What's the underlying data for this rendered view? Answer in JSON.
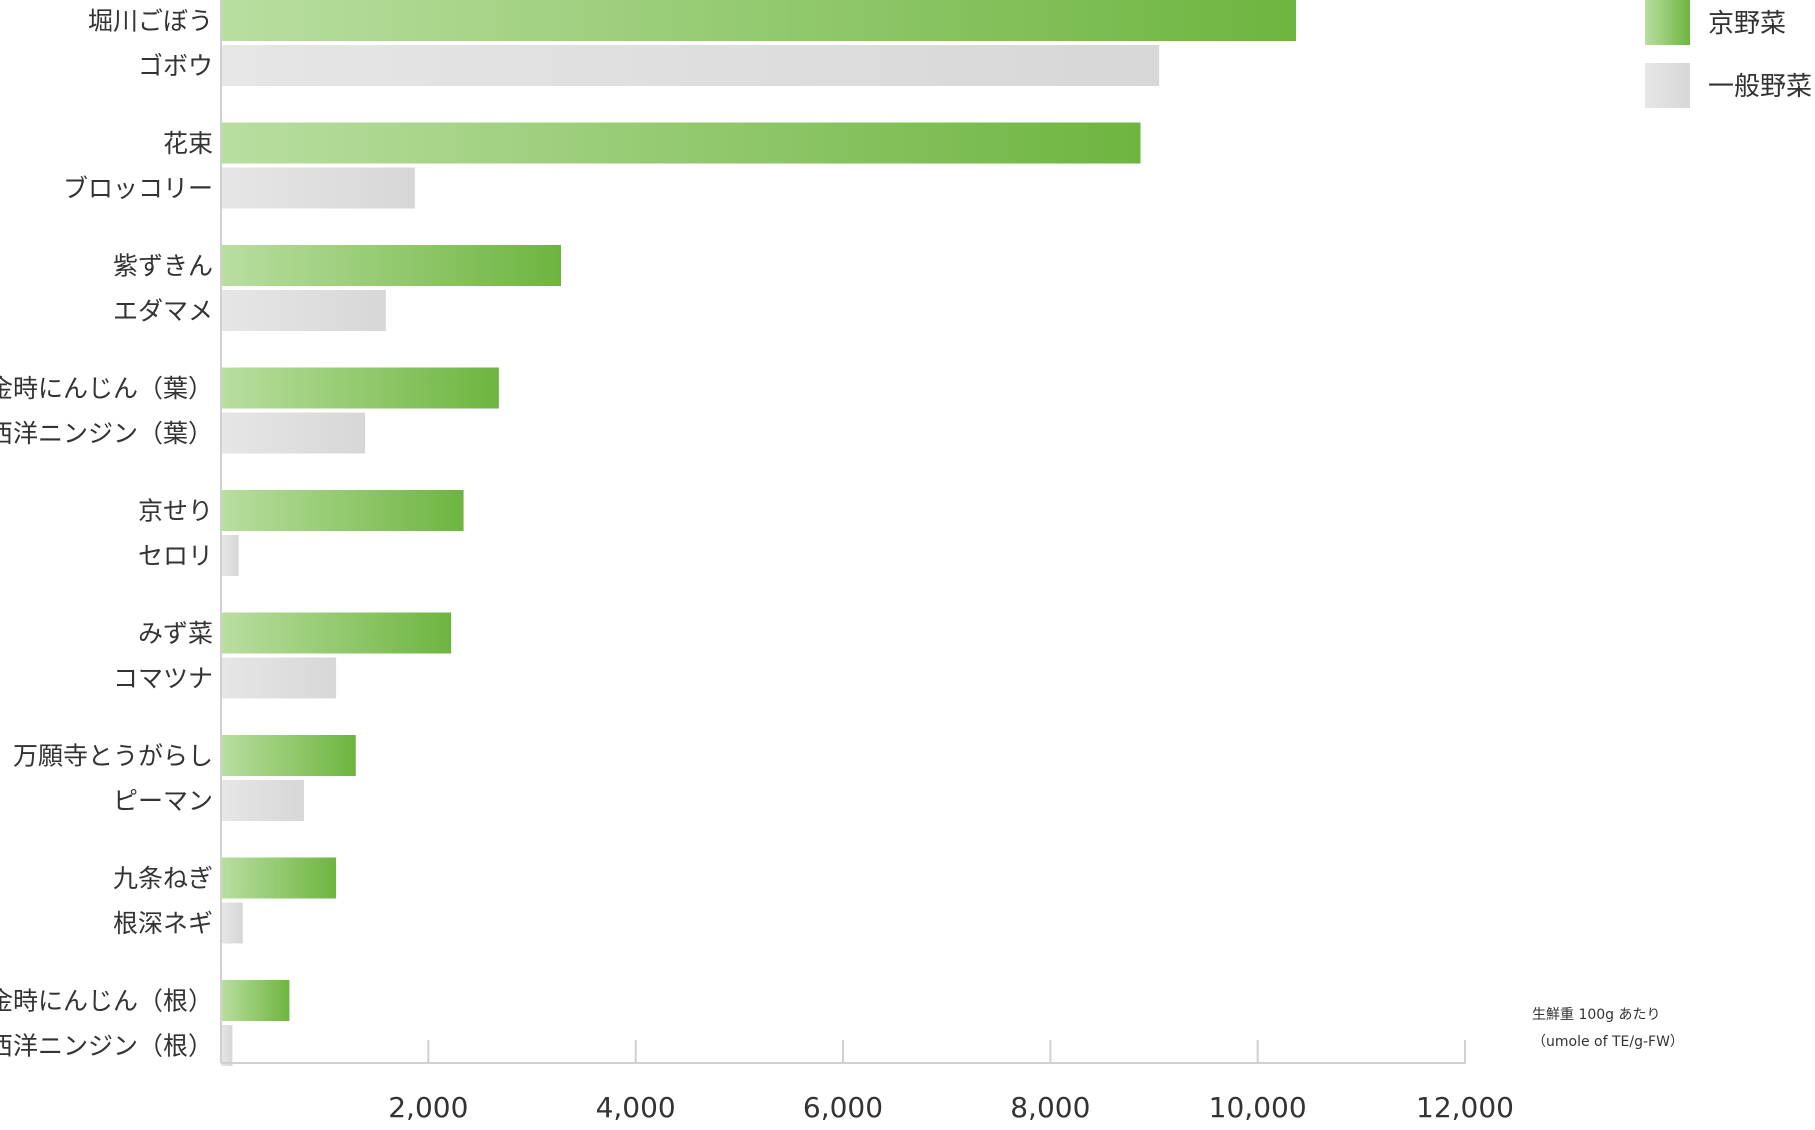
{
  "chart_data": {
    "type": "bar",
    "orientation": "horizontal",
    "xlim": [
      0,
      12000
    ],
    "xticks": [
      2000,
      4000,
      6000,
      8000,
      10000,
      12000
    ],
    "xtick_labels": [
      "2,000",
      "4,000",
      "6,000",
      "8,000",
      "10,000",
      "12,000"
    ],
    "grid": false,
    "legend_position": "top-right",
    "note_lines": [
      "生鮮重 100g あたり",
      "（umole of TE/g-FW）"
    ],
    "colors": {
      "kyo_start": "#b9dea0",
      "kyo_end": "#6eb540",
      "general_start": "#e6e6e6",
      "general_end": "#d7d7d7",
      "axis": "#d0d0d0",
      "text": "#333333"
    },
    "series": [
      {
        "name": "京野菜",
        "key": "kyo"
      },
      {
        "name": "一般野菜",
        "key": "general"
      }
    ],
    "groups": [
      {
        "kyo_label": "堀川ごぼう",
        "kyo_value": 10370,
        "general_label": "ゴボウ",
        "general_value": 9050
      },
      {
        "kyo_label": "花束",
        "kyo_value": 8870,
        "general_label": "ブロッコリー",
        "general_value": 1870
      },
      {
        "kyo_label": "紫ずきん",
        "kyo_value": 3280,
        "general_label": "エダマメ",
        "general_value": 1590
      },
      {
        "kyo_label": "金時にんじん（葉）",
        "kyo_value": 2680,
        "general_label": "西洋ニンジン（葉）",
        "general_value": 1390
      },
      {
        "kyo_label": "京せり",
        "kyo_value": 2340,
        "general_label": "セロリ",
        "general_value": 170
      },
      {
        "kyo_label": "みず菜",
        "kyo_value": 2220,
        "general_label": "コマツナ",
        "general_value": 1110
      },
      {
        "kyo_label": "万願寺とうがらし",
        "kyo_value": 1300,
        "general_label": "ピーマン",
        "general_value": 800
      },
      {
        "kyo_label": "九条ねぎ",
        "kyo_value": 1110,
        "general_label": "根深ネギ",
        "general_value": 210
      },
      {
        "kyo_label": "金時にんじん（根）",
        "kyo_value": 660,
        "general_label": "西洋ニンジン（根）",
        "general_value": 110
      }
    ]
  }
}
